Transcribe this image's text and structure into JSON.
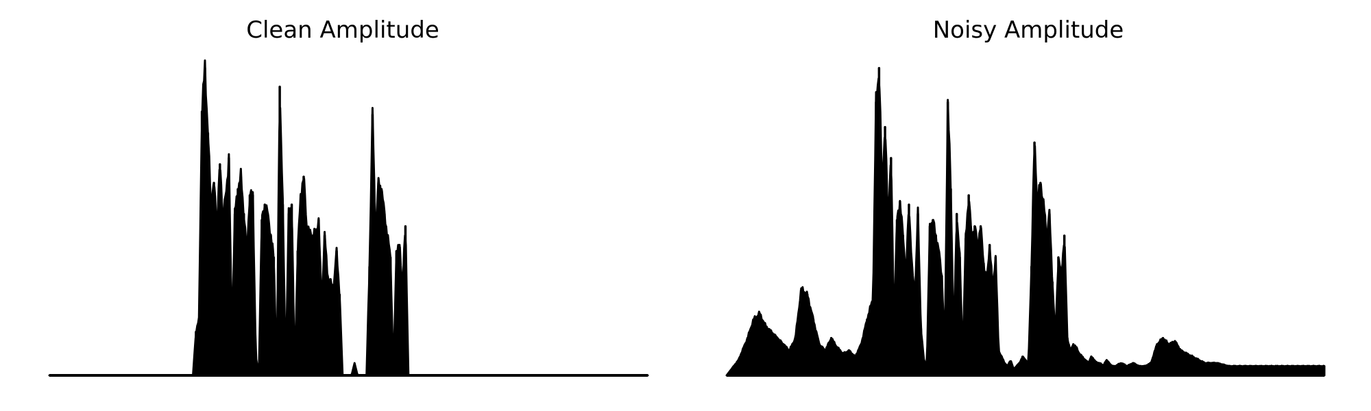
{
  "chart_data": [
    {
      "type": "area",
      "title": "Clean Amplitude",
      "xlabel": "",
      "ylabel": "",
      "xlim": [
        0,
        1
      ],
      "ylim": [
        0,
        1
      ],
      "axes_visible": false,
      "grid": false,
      "color": "#000000",
      "envelope": {
        "x": [
          0.0,
          0.24,
          0.245,
          0.25,
          0.255,
          0.26,
          0.265,
          0.27,
          0.275,
          0.28,
          0.285,
          0.29,
          0.295,
          0.3,
          0.305,
          0.31,
          0.315,
          0.32,
          0.325,
          0.33,
          0.335,
          0.34,
          0.345,
          0.35,
          0.355,
          0.36,
          0.365,
          0.37,
          0.375,
          0.38,
          0.385,
          0.39,
          0.395,
          0.4,
          0.405,
          0.41,
          0.415,
          0.42,
          0.425,
          0.43,
          0.435,
          0.44,
          0.445,
          0.45,
          0.455,
          0.46,
          0.465,
          0.47,
          0.475,
          0.48,
          0.485,
          0.49,
          0.495,
          0.5,
          0.505,
          0.51,
          0.515,
          0.52,
          0.525,
          0.53,
          0.535,
          0.54,
          0.545,
          0.55,
          0.555,
          0.56,
          0.565,
          0.57,
          0.575,
          0.58,
          0.585,
          0.59,
          0.595,
          0.6,
          0.605,
          0.61,
          0.615,
          0.62,
          0.625,
          0.63,
          0.635,
          0.64,
          0.645,
          0.65,
          0.655,
          0.66,
          0.665,
          0.67,
          0.675,
          0.68,
          0.685,
          0.69,
          0.695,
          0.7,
          0.705,
          0.71,
          0.715,
          0.72,
          0.725,
          0.73,
          0.735,
          0.74,
          0.745,
          0.75,
          0.755,
          0.76,
          0.765,
          0.77,
          0.775,
          0.78,
          0.785,
          0.79,
          0.795,
          0.8,
          1.0
        ],
        "y": [
          0.0,
          0.0,
          0.14,
          0.18,
          0.85,
          0.99,
          0.78,
          0.55,
          0.62,
          0.48,
          0.68,
          0.51,
          0.58,
          0.7,
          0.12,
          0.52,
          0.6,
          0.64,
          0.52,
          0.4,
          0.58,
          0.58,
          0.06,
          0.0,
          0.5,
          0.55,
          0.52,
          0.45,
          0.38,
          0.0,
          0.93,
          0.55,
          0.0,
          0.52,
          0.55,
          0.0,
          0.4,
          0.58,
          0.64,
          0.48,
          0.46,
          0.45,
          0.46,
          0.5,
          0.22,
          0.45,
          0.32,
          0.3,
          0.28,
          0.4,
          0.26,
          0.0,
          0.0,
          0.0,
          0.0,
          0.04,
          0.0,
          0.0,
          0.0,
          0.0,
          0.35,
          0.84,
          0.45,
          0.62,
          0.6,
          0.52,
          0.45,
          0.38,
          0.0,
          0.4,
          0.42,
          0.28,
          0.48,
          0.0,
          0.0,
          0.0,
          0.0,
          0.0,
          0.0,
          0.0,
          0.0,
          0.0,
          0.0,
          0.0,
          0.0,
          0.0,
          0.0,
          0.0,
          0.0,
          0.0,
          0.0,
          0.0,
          0.0,
          0.0,
          0.0,
          0.0,
          0.0,
          0.0,
          0.0,
          0.0,
          0.0,
          0.0,
          0.0,
          0.0,
          0.0,
          0.0,
          0.0,
          0.0,
          0.0,
          0.0,
          0.0,
          0.0,
          0.0,
          0.0,
          0.0
        ]
      }
    },
    {
      "type": "area",
      "title": "Noisy Amplitude",
      "xlabel": "",
      "ylabel": "",
      "xlim": [
        0,
        1
      ],
      "ylim": [
        0,
        1
      ],
      "axes_visible": false,
      "grid": false,
      "color": "#000000",
      "envelope": {
        "x": [
          0.0,
          0.02,
          0.035,
          0.045,
          0.055,
          0.065,
          0.075,
          0.085,
          0.095,
          0.105,
          0.115,
          0.125,
          0.135,
          0.145,
          0.155,
          0.165,
          0.175,
          0.185,
          0.195,
          0.205,
          0.215,
          0.225,
          0.235,
          0.245,
          0.25,
          0.255,
          0.26,
          0.265,
          0.27,
          0.275,
          0.28,
          0.285,
          0.29,
          0.295,
          0.3,
          0.305,
          0.31,
          0.315,
          0.32,
          0.325,
          0.33,
          0.335,
          0.34,
          0.345,
          0.35,
          0.355,
          0.36,
          0.365,
          0.37,
          0.375,
          0.38,
          0.385,
          0.39,
          0.395,
          0.4,
          0.405,
          0.41,
          0.415,
          0.42,
          0.425,
          0.43,
          0.435,
          0.44,
          0.445,
          0.45,
          0.455,
          0.46,
          0.465,
          0.47,
          0.475,
          0.48,
          0.485,
          0.49,
          0.495,
          0.5,
          0.505,
          0.51,
          0.515,
          0.52,
          0.525,
          0.53,
          0.535,
          0.54,
          0.545,
          0.55,
          0.555,
          0.56,
          0.565,
          0.57,
          0.575,
          0.58,
          0.585,
          0.59,
          0.595,
          0.6,
          0.605,
          0.61,
          0.615,
          0.62,
          0.625,
          0.63,
          0.635,
          0.64,
          0.645,
          0.65,
          0.66,
          0.67,
          0.68,
          0.69,
          0.7,
          0.71,
          0.72,
          0.73,
          0.74,
          0.75,
          0.76,
          0.77,
          0.78,
          0.79,
          0.8,
          0.82,
          0.84,
          0.86,
          0.88,
          0.9,
          0.92,
          0.94,
          0.96,
          0.98,
          1.0
        ],
        "y": [
          0.0,
          0.05,
          0.12,
          0.18,
          0.2,
          0.16,
          0.14,
          0.12,
          0.1,
          0.08,
          0.12,
          0.28,
          0.26,
          0.18,
          0.1,
          0.08,
          0.12,
          0.09,
          0.07,
          0.08,
          0.06,
          0.1,
          0.18,
          0.25,
          0.88,
          0.99,
          0.6,
          0.8,
          0.5,
          0.7,
          0.15,
          0.5,
          0.56,
          0.45,
          0.32,
          0.55,
          0.35,
          0.25,
          0.52,
          0.15,
          0.05,
          0.03,
          0.48,
          0.5,
          0.45,
          0.4,
          0.32,
          0.08,
          0.88,
          0.6,
          0.1,
          0.52,
          0.38,
          0.05,
          0.44,
          0.58,
          0.44,
          0.48,
          0.42,
          0.48,
          0.36,
          0.3,
          0.42,
          0.28,
          0.38,
          0.08,
          0.06,
          0.04,
          0.03,
          0.05,
          0.02,
          0.03,
          0.04,
          0.06,
          0.05,
          0.04,
          0.35,
          0.75,
          0.55,
          0.62,
          0.56,
          0.45,
          0.52,
          0.3,
          0.12,
          0.38,
          0.32,
          0.45,
          0.12,
          0.08,
          0.1,
          0.09,
          0.07,
          0.06,
          0.05,
          0.04,
          0.06,
          0.05,
          0.04,
          0.04,
          0.03,
          0.05,
          0.04,
          0.03,
          0.03,
          0.04,
          0.03,
          0.04,
          0.03,
          0.03,
          0.04,
          0.1,
          0.12,
          0.1,
          0.11,
          0.08,
          0.07,
          0.06,
          0.05,
          0.04,
          0.04,
          0.03,
          0.03,
          0.03,
          0.03,
          0.03,
          0.03,
          0.03,
          0.03,
          0.03
        ]
      }
    }
  ]
}
